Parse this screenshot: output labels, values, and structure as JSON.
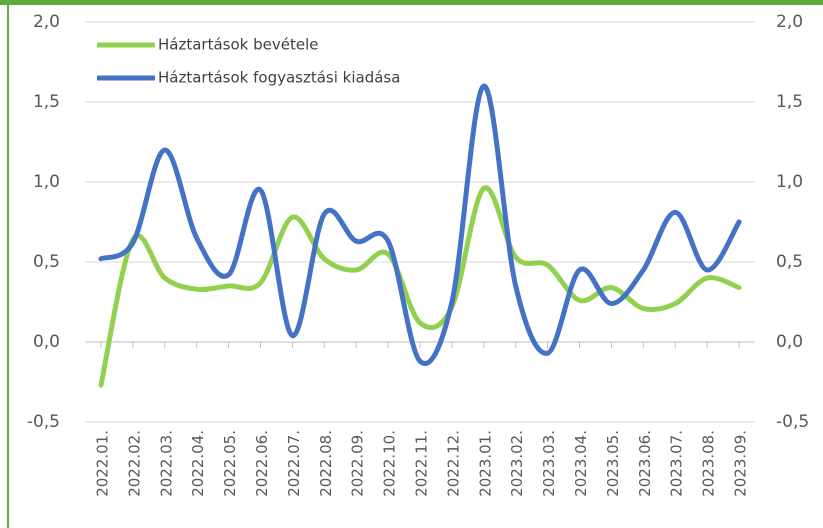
{
  "chart_data": {
    "type": "line",
    "categories": [
      "2022.01.",
      "2022.02.",
      "2022.03.",
      "2022.04.",
      "2022.05.",
      "2022.06.",
      "2022.07.",
      "2022.08.",
      "2022.09.",
      "2022.10.",
      "2022.11.",
      "2022.12.",
      "2023.01.",
      "2023.02.",
      "2023.03.",
      "2023.04.",
      "2023.05.",
      "2023.06.",
      "2023.07.",
      "2023.08.",
      "2023.09."
    ],
    "series": [
      {
        "name": "Háztartások bevétele",
        "color": "#92d050",
        "values": [
          -0.27,
          0.64,
          0.4,
          0.33,
          0.35,
          0.37,
          0.78,
          0.52,
          0.45,
          0.55,
          0.12,
          0.22,
          0.96,
          0.53,
          0.48,
          0.26,
          0.34,
          0.21,
          0.24,
          0.4,
          0.34
        ]
      },
      {
        "name": "Háztartások fogyasztási kiadása",
        "color": "#4472c4",
        "values": [
          0.52,
          0.62,
          1.2,
          0.65,
          0.42,
          0.95,
          0.04,
          0.8,
          0.63,
          0.63,
          -0.12,
          0.25,
          1.6,
          0.35,
          -0.07,
          0.45,
          0.24,
          0.45,
          0.81,
          0.45,
          0.75
        ]
      }
    ],
    "ylim": [
      -0.5,
      2.0
    ],
    "yticks": [
      {
        "value": -0.5,
        "label": "-0,5"
      },
      {
        "value": 0,
        "label": "0,0"
      },
      {
        "value": 0.5,
        "label": "0,5"
      },
      {
        "value": 1.0,
        "label": "1,0"
      },
      {
        "value": 1.5,
        "label": "1,5"
      },
      {
        "value": 2.0,
        "label": "2,0"
      }
    ],
    "y2lim": [
      -0.5,
      2.0
    ],
    "y2ticks": [
      {
        "value": -0.5,
        "label": "-0,5"
      },
      {
        "value": 0,
        "label": "0,0"
      },
      {
        "value": 0.5,
        "label": "0,5"
      },
      {
        "value": 1.0,
        "label": "1,0"
      },
      {
        "value": 1.5,
        "label": "1,5"
      },
      {
        "value": 2.0,
        "label": "2,0"
      }
    ],
    "grid": true,
    "legend": "top-left",
    "smooth": true
  }
}
